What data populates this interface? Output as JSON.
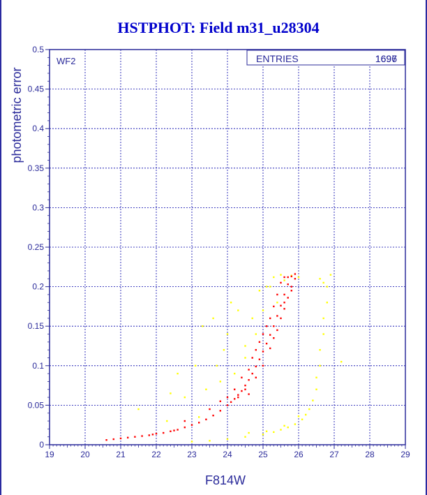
{
  "chart_data": {
    "type": "scatter",
    "title": "HSTPHOT: Field m31_u28304",
    "xlabel": "F814W",
    "ylabel": "photometric error",
    "xlim": [
      19,
      29
    ],
    "ylim": [
      0,
      0.5
    ],
    "x_ticks": [
      "19",
      "20",
      "21",
      "22",
      "23",
      "24",
      "25",
      "26",
      "27",
      "28",
      "29"
    ],
    "y_ticks": [
      "0",
      "0.05",
      "0.1",
      "0.15",
      "0.2",
      "0.25",
      "0.3",
      "0.35",
      "0.4",
      "0.45",
      "0.5"
    ],
    "grid": true,
    "panel_label": "WF2",
    "stats_box": {
      "label": "ENTRIES",
      "value": "1697",
      "overlay_value": "1696",
      "position": "top-right"
    },
    "colors": {
      "primary": "#ff0000",
      "secondary": "#ffff00",
      "axis": "#2a2a9a",
      "grid": "#0000aa",
      "title": "#0000cc"
    },
    "series": [
      {
        "color": "#ff0000",
        "points": [
          [
            20.6,
            0.006
          ],
          [
            20.8,
            0.007
          ],
          [
            21.0,
            0.008
          ],
          [
            21.2,
            0.009
          ],
          [
            21.4,
            0.01
          ],
          [
            21.6,
            0.011
          ],
          [
            21.8,
            0.012
          ],
          [
            22.0,
            0.014
          ],
          [
            22.2,
            0.015
          ],
          [
            22.4,
            0.017
          ],
          [
            22.6,
            0.019
          ],
          [
            22.8,
            0.022
          ],
          [
            23.0,
            0.025
          ],
          [
            23.2,
            0.028
          ],
          [
            23.4,
            0.032
          ],
          [
            23.6,
            0.037
          ],
          [
            23.8,
            0.043
          ],
          [
            24.0,
            0.05
          ],
          [
            24.1,
            0.054
          ],
          [
            24.2,
            0.058
          ],
          [
            24.3,
            0.063
          ],
          [
            24.4,
            0.068
          ],
          [
            24.5,
            0.075
          ],
          [
            24.6,
            0.082
          ],
          [
            24.7,
            0.09
          ],
          [
            24.8,
            0.099
          ],
          [
            24.9,
            0.108
          ],
          [
            25.0,
            0.118
          ],
          [
            25.1,
            0.128
          ],
          [
            25.2,
            0.139
          ],
          [
            25.3,
            0.15
          ],
          [
            25.4,
            0.163
          ],
          [
            25.5,
            0.176
          ],
          [
            25.6,
            0.19
          ],
          [
            25.7,
            0.203
          ],
          [
            25.8,
            0.213
          ],
          [
            25.9,
            0.216
          ],
          [
            24.3,
            0.06
          ],
          [
            24.5,
            0.07
          ],
          [
            24.6,
            0.064
          ],
          [
            24.8,
            0.085
          ],
          [
            25.0,
            0.1
          ],
          [
            25.2,
            0.122
          ],
          [
            25.3,
            0.135
          ],
          [
            25.4,
            0.145
          ],
          [
            25.5,
            0.16
          ],
          [
            25.6,
            0.172
          ],
          [
            25.7,
            0.186
          ],
          [
            25.8,
            0.2
          ],
          [
            25.5,
            0.205
          ],
          [
            25.6,
            0.212
          ],
          [
            25.4,
            0.19
          ],
          [
            25.3,
            0.175
          ],
          [
            25.1,
            0.15
          ],
          [
            24.9,
            0.13
          ],
          [
            24.7,
            0.11
          ],
          [
            24.4,
            0.085
          ],
          [
            24.2,
            0.07
          ],
          [
            24.0,
            0.06
          ],
          [
            23.5,
            0.045
          ],
          [
            22.8,
            0.03
          ],
          [
            22.5,
            0.018
          ],
          [
            21.9,
            0.013
          ],
          [
            23.8,
            0.055
          ],
          [
            24.6,
            0.095
          ],
          [
            25.2,
            0.16
          ],
          [
            25.7,
            0.212
          ],
          [
            25.9,
            0.21
          ],
          [
            25.8,
            0.195
          ],
          [
            25.6,
            0.18
          ],
          [
            25.0,
            0.14
          ],
          [
            24.8,
            0.12
          ]
        ]
      },
      {
        "color": "#ffff00",
        "points": [
          [
            23.0,
            0.004
          ],
          [
            23.5,
            0.005
          ],
          [
            24.0,
            0.007
          ],
          [
            24.5,
            0.01
          ],
          [
            25.0,
            0.013
          ],
          [
            25.3,
            0.016
          ],
          [
            25.5,
            0.019
          ],
          [
            25.7,
            0.022
          ],
          [
            25.9,
            0.026
          ],
          [
            26.1,
            0.032
          ],
          [
            26.2,
            0.038
          ],
          [
            26.3,
            0.045
          ],
          [
            26.4,
            0.056
          ],
          [
            26.5,
            0.07
          ],
          [
            26.5,
            0.085
          ],
          [
            26.6,
            0.1
          ],
          [
            26.6,
            0.12
          ],
          [
            26.7,
            0.14
          ],
          [
            26.7,
            0.16
          ],
          [
            26.8,
            0.18
          ],
          [
            26.8,
            0.2
          ],
          [
            26.9,
            0.215
          ],
          [
            26.6,
            0.21
          ],
          [
            26.7,
            0.205
          ],
          [
            24.6,
            0.015
          ],
          [
            25.1,
            0.017
          ],
          [
            25.6,
            0.024
          ],
          [
            26.0,
            0.036
          ],
          [
            24.8,
            0.14
          ],
          [
            25.0,
            0.17
          ],
          [
            25.2,
            0.2
          ],
          [
            24.5,
            0.11
          ],
          [
            24.2,
            0.09
          ],
          [
            23.8,
            0.08
          ],
          [
            23.4,
            0.07
          ],
          [
            23.1,
            0.1
          ],
          [
            22.8,
            0.06
          ],
          [
            22.4,
            0.065
          ],
          [
            23.6,
            0.16
          ],
          [
            24.1,
            0.18
          ],
          [
            25.3,
            0.212
          ],
          [
            25.5,
            0.215
          ],
          [
            25.6,
            0.208
          ],
          [
            24.9,
            0.195
          ],
          [
            24.5,
            0.125
          ],
          [
            23.9,
            0.12
          ],
          [
            22.3,
            0.03
          ],
          [
            21.5,
            0.045
          ],
          [
            23.3,
            0.15
          ],
          [
            24.3,
            0.17
          ],
          [
            26.0,
            0.212
          ],
          [
            25.8,
            0.214
          ],
          [
            27.2,
            0.105
          ],
          [
            25.4,
            0.18
          ],
          [
            24.0,
            0.14
          ],
          [
            23.7,
            0.1
          ],
          [
            22.6,
            0.09
          ],
          [
            24.7,
            0.16
          ],
          [
            25.1,
            0.2
          ],
          [
            23.2,
            0.035
          ]
        ]
      }
    ]
  }
}
